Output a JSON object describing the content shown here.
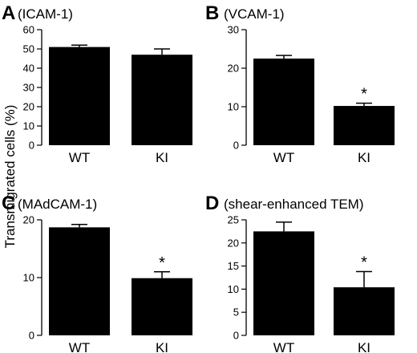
{
  "figure": {
    "ylabel": "Transmigrated cells (%)"
  },
  "chart_data": [
    {
      "type": "bar",
      "letter": "A",
      "title": "(ICAM-1)",
      "categories": [
        "WT",
        "KI"
      ],
      "values": [
        51,
        47
      ],
      "errors": [
        1,
        3
      ],
      "significance": [
        "",
        ""
      ],
      "ylim": [
        0,
        60
      ],
      "yticks": [
        0,
        10,
        20,
        30,
        40,
        50,
        60
      ],
      "xlabel": "",
      "ylabel": "",
      "bar_color": "#000000"
    },
    {
      "type": "bar",
      "letter": "B",
      "title": "(VCAM-1)",
      "categories": [
        "WT",
        "KI"
      ],
      "values": [
        22.5,
        10.2
      ],
      "errors": [
        0.8,
        0.7
      ],
      "significance": [
        "",
        "*"
      ],
      "ylim": [
        0,
        30
      ],
      "yticks": [
        0,
        10,
        20,
        30
      ],
      "xlabel": "",
      "ylabel": "",
      "bar_color": "#000000"
    },
    {
      "type": "bar",
      "letter": "C",
      "title": "(MAdCAM-1)",
      "categories": [
        "WT",
        "KI"
      ],
      "values": [
        18.7,
        9.9
      ],
      "errors": [
        0.5,
        1.1
      ],
      "significance": [
        "",
        "*"
      ],
      "ylim": [
        0,
        20
      ],
      "yticks": [
        0,
        10,
        20
      ],
      "xlabel": "",
      "ylabel": "",
      "bar_color": "#000000"
    },
    {
      "type": "bar",
      "letter": "D",
      "title": "(shear-enhanced TEM)",
      "categories": [
        "WT",
        "KI"
      ],
      "values": [
        22.5,
        10.4
      ],
      "errors": [
        2.0,
        3.4
      ],
      "significance": [
        "",
        "*"
      ],
      "ylim": [
        0,
        25
      ],
      "yticks": [
        0,
        5,
        10,
        15,
        20,
        25
      ],
      "xlabel": "",
      "ylabel": "",
      "bar_color": "#000000"
    }
  ]
}
